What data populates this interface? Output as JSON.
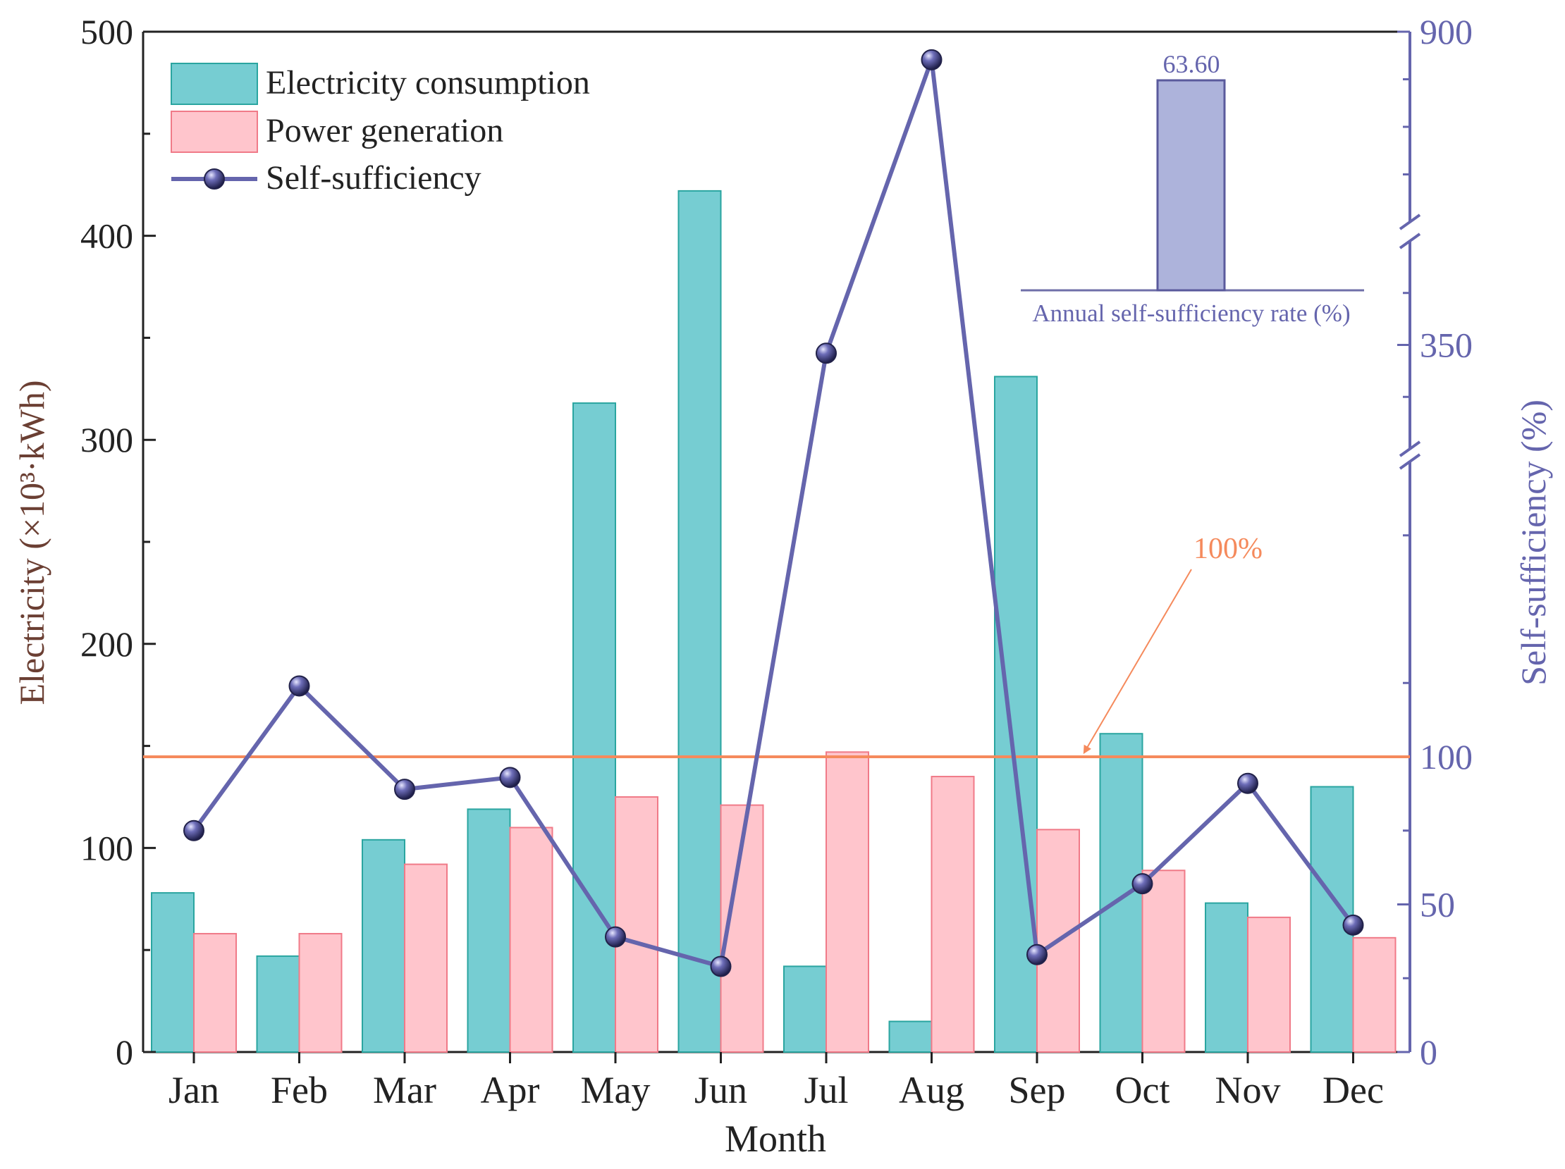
{
  "chart_data": {
    "type": "bar",
    "categories": [
      "Jan",
      "Feb",
      "Mar",
      "Apr",
      "May",
      "Jun",
      "Jul",
      "Aug",
      "Sep",
      "Oct",
      "Nov",
      "Dec"
    ],
    "series": [
      {
        "name": "Electricity consumption",
        "axis": "left",
        "type": "bar",
        "color": "#76cdd2",
        "stroke": "#2aa5a0",
        "values": [
          78,
          47,
          104,
          119,
          318,
          422,
          42,
          15,
          331,
          156,
          73,
          130
        ]
      },
      {
        "name": "Power generation",
        "axis": "left",
        "type": "bar",
        "color": "#ffc5cc",
        "stroke": "#f07a88",
        "values": [
          58,
          58,
          92,
          110,
          125,
          121,
          147,
          135,
          109,
          89,
          66,
          56
        ]
      },
      {
        "name": "Self-sufficiency",
        "axis": "right",
        "type": "line",
        "color": "#6565ad",
        "values": [
          75,
          124,
          89,
          93,
          39,
          29,
          346,
          841,
          33,
          57,
          91,
          43
        ]
      }
    ],
    "xlabel": "Month",
    "ylabel_left": "Electricity (×10³·kWh)",
    "ylabel_right": "Self-sufficiency (%)",
    "ylim_left": [
      0,
      500
    ],
    "yticks_left": [
      "0",
      "100",
      "200",
      "300",
      "400",
      "500"
    ],
    "right_axis_segments": [
      {
        "range": [
          0,
          200
        ],
        "ticks": [
          0,
          50,
          100
        ]
      },
      {
        "range": [
          300,
          400
        ],
        "ticks": [
          350
        ]
      },
      {
        "range": [
          500,
          900
        ],
        "ticks": [
          900
        ]
      }
    ],
    "right_tick_labels": [
      "0",
      "50",
      "100",
      "350",
      "900"
    ],
    "reference_line": {
      "value": 100,
      "axis": "right",
      "label": "100%",
      "color": "#f58a5c"
    },
    "inset": {
      "label": "Annual self-sufficiency rate (%)",
      "value": 63.6,
      "value_label": "63.60",
      "color": "#adb3db"
    },
    "legend_position": "top-left",
    "axis_colors": {
      "left": "#222222",
      "right": "#6565ad",
      "left_label": "#6b3f33"
    }
  }
}
